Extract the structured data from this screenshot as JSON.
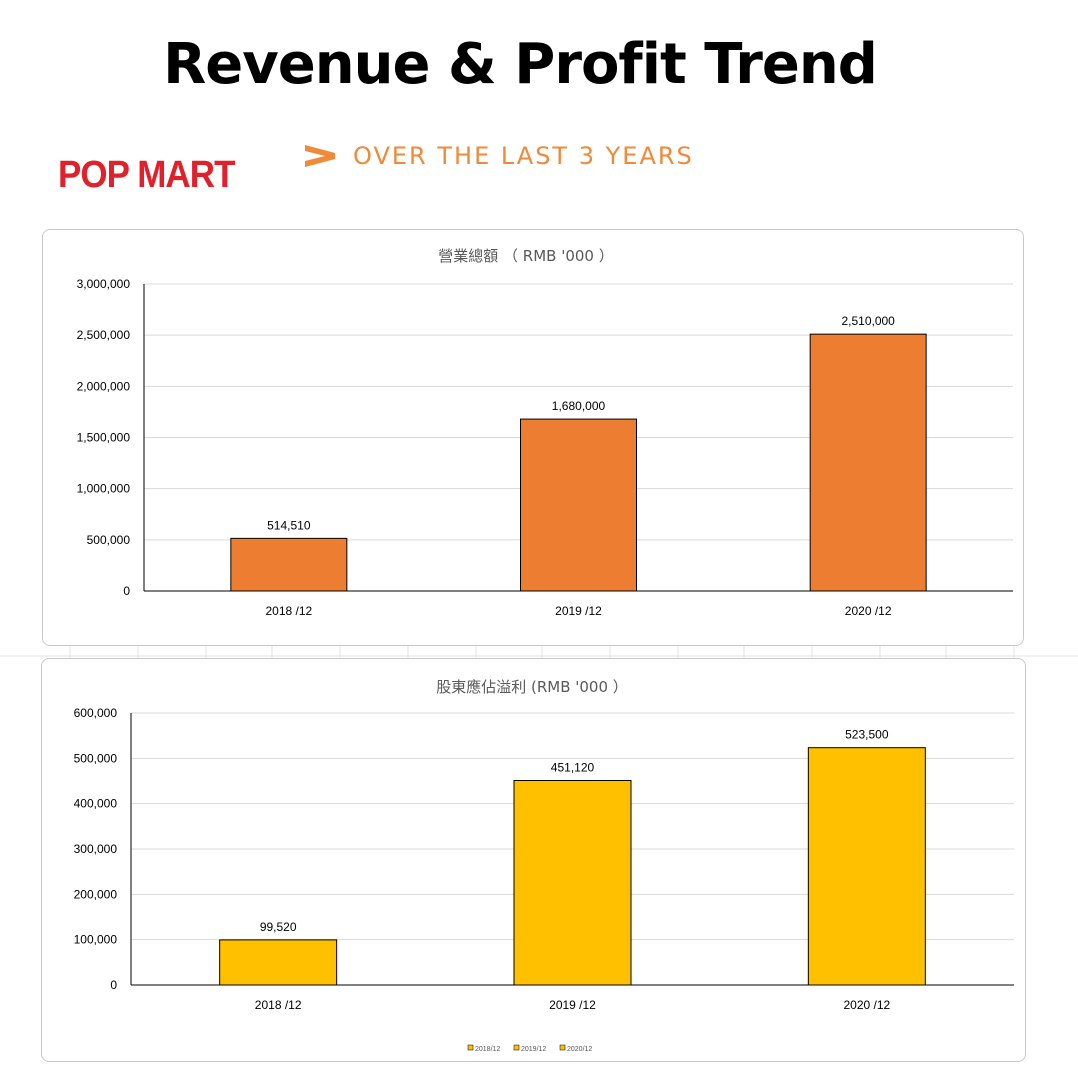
{
  "header": {
    "title": "Revenue & Profit Trend",
    "subtitle": "OVER THE LAST 3 YEARS",
    "brand": "POP MART"
  },
  "colors": {
    "brand": "#e0202b",
    "accent": "#ef8a3a",
    "revenue_bar": "#ed7d31",
    "profit_bar": "#ffc000"
  },
  "chart_data": [
    {
      "type": "bar",
      "title": "營業總額 （ RMB '000 ）",
      "categories": [
        "2018 /12",
        "2019 /12",
        "2020 /12"
      ],
      "values": [
        514510,
        1680000,
        2510000
      ],
      "data_labels": [
        "514,510",
        "1,680,000",
        "2,510,000"
      ],
      "ylim": [
        0,
        3000000
      ],
      "yticks": [
        0,
        500000,
        1000000,
        1500000,
        2000000,
        2500000,
        3000000
      ],
      "ytick_labels": [
        "0",
        "500,000",
        "1,000,000",
        "1,500,000",
        "2,000,000",
        "2,500,000",
        "3,000,000"
      ],
      "grid": true
    },
    {
      "type": "bar",
      "title": "股東應佔溢利 (RMB '000 ）",
      "categories": [
        "2018 /12",
        "2019 /12",
        "2020 /12"
      ],
      "values": [
        99520,
        451120,
        523500
      ],
      "data_labels": [
        "99,520",
        "451,120",
        "523,500"
      ],
      "ylim": [
        0,
        600000
      ],
      "yticks": [
        0,
        100000,
        200000,
        300000,
        400000,
        500000,
        600000
      ],
      "ytick_labels": [
        "0",
        "100,000",
        "200,000",
        "300,000",
        "400,000",
        "500,000",
        "600,000"
      ],
      "grid": true,
      "legend": [
        "2018/12",
        "2019/12",
        "2020/12"
      ],
      "legend_position": "bottom"
    }
  ]
}
